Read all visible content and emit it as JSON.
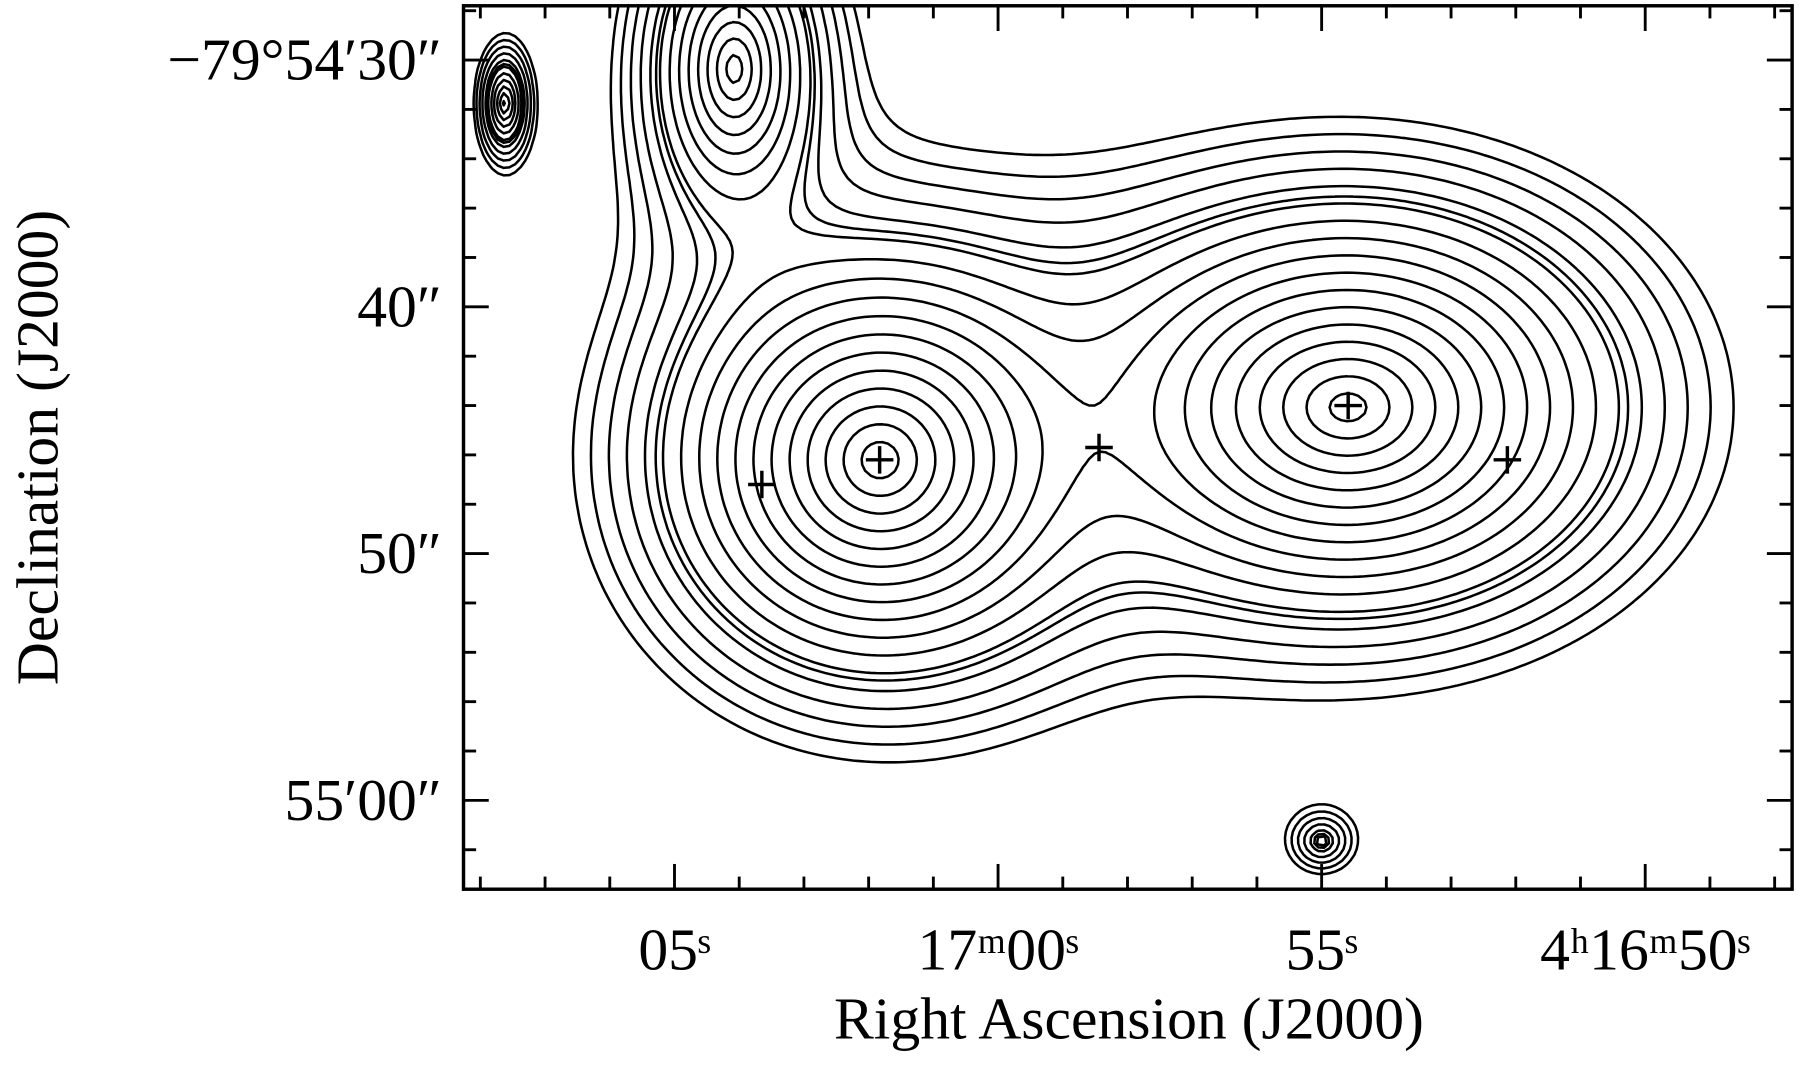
{
  "chart_data": {
    "type": "contour",
    "xlabel": "Right Ascension (J2000)",
    "ylabel": "Declination (J2000)",
    "xlim": [
      68.26,
      47.73
    ],
    "ylim": [
      63.6,
      27.8
    ],
    "xticks": [
      {
        "value": 65,
        "label": "05ˢ"
      },
      {
        "value": 60,
        "label": "17ᵐ00ˢ"
      },
      {
        "value": 55,
        "label": "55ˢ"
      },
      {
        "value": 50,
        "label": "4ʰ16ᵐ50ˢ"
      }
    ],
    "yticks": [
      {
        "value": 30,
        "label": "−79°54′30″"
      },
      {
        "value": 40,
        "label": "40″"
      },
      {
        "value": 50,
        "label": "50″"
      },
      {
        "value": 60,
        "label": "55′00″"
      }
    ],
    "xminorticks": [
      68,
      67,
      66,
      64,
      63,
      62,
      61,
      59,
      58,
      57,
      56,
      54,
      53,
      52,
      51,
      49,
      48
    ],
    "yminorticks": [
      28,
      32,
      34,
      36,
      38,
      42,
      44,
      46,
      48,
      52,
      54,
      56,
      58,
      62
    ],
    "points": {
      "x": [
        63.65,
        61.83,
        58.44,
        54.59,
        52.13
      ],
      "y": [
        47.2,
        46.2,
        45.7,
        44.0,
        46.2
      ]
    },
    "color": "#000000"
  }
}
